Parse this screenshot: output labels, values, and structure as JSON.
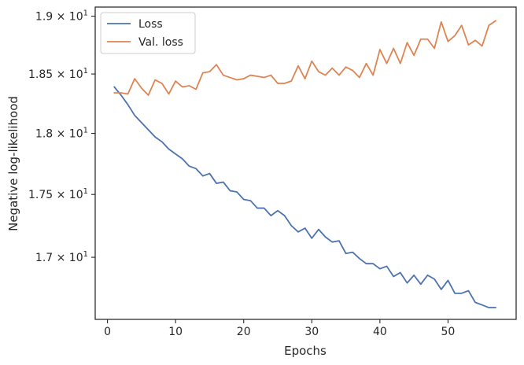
{
  "chart_data": {
    "type": "line",
    "xlabel": "Epochs",
    "ylabel": "Negative log-likelihood",
    "y_scale": "log",
    "xlim": [
      -1.8,
      60.0
    ],
    "ylim": [
      16.52,
      19.08
    ],
    "x_ticks": [
      0,
      10,
      20,
      30,
      40,
      50
    ],
    "x_tick_labels": [
      "0",
      "10",
      "20",
      "30",
      "40",
      "50"
    ],
    "y_ticks": [
      17.0,
      17.5,
      18.0,
      18.5,
      19.0
    ],
    "y_tick_labels": [
      {
        "mantissa": "1.7",
        "exp": "1"
      },
      {
        "mantissa": "1.75",
        "exp": "1"
      },
      {
        "mantissa": "1.8",
        "exp": "1"
      },
      {
        "mantissa": "1.85",
        "exp": "1"
      },
      {
        "mantissa": "1.9",
        "exp": "1"
      }
    ],
    "grid": false,
    "legend_position": "top-left",
    "x": [
      1,
      2,
      3,
      4,
      5,
      6,
      7,
      8,
      9,
      10,
      11,
      12,
      13,
      14,
      15,
      16,
      17,
      18,
      19,
      20,
      21,
      22,
      23,
      24,
      25,
      26,
      27,
      28,
      29,
      30,
      31,
      32,
      33,
      34,
      35,
      36,
      37,
      38,
      39,
      40,
      41,
      42,
      43,
      44,
      45,
      46,
      47,
      48,
      49,
      50,
      51,
      52,
      53,
      54,
      55,
      56,
      57
    ],
    "series": [
      {
        "name": "Loss",
        "color": "#4c72b0",
        "values": [
          18.39,
          18.32,
          18.24,
          18.15,
          18.09,
          18.03,
          17.97,
          17.93,
          17.87,
          17.83,
          17.79,
          17.73,
          17.71,
          17.65,
          17.67,
          17.59,
          17.6,
          17.53,
          17.52,
          17.46,
          17.45,
          17.39,
          17.39,
          17.33,
          17.37,
          17.33,
          17.25,
          17.2,
          17.23,
          17.15,
          17.22,
          17.16,
          17.12,
          17.13,
          17.03,
          17.04,
          16.99,
          16.95,
          16.95,
          16.91,
          16.93,
          16.85,
          16.88,
          16.8,
          16.86,
          16.79,
          16.86,
          16.83,
          16.75,
          16.82,
          16.72,
          16.72,
          16.74,
          16.65,
          16.63,
          16.61,
          16.61
        ]
      },
      {
        "name": "Val. loss",
        "color": "#dd8452",
        "values": [
          18.34,
          18.34,
          18.33,
          18.46,
          18.38,
          18.32,
          18.45,
          18.42,
          18.33,
          18.44,
          18.39,
          18.4,
          18.37,
          18.51,
          18.52,
          18.58,
          18.49,
          18.47,
          18.45,
          18.46,
          18.49,
          18.48,
          18.47,
          18.49,
          18.42,
          18.42,
          18.44,
          18.57,
          18.46,
          18.61,
          18.52,
          18.49,
          18.55,
          18.49,
          18.56,
          18.53,
          18.47,
          18.59,
          18.49,
          18.71,
          18.59,
          18.72,
          18.59,
          18.77,
          18.66,
          18.8,
          18.8,
          18.72,
          18.95,
          18.78,
          18.83,
          18.92,
          18.75,
          18.79,
          18.74,
          18.92,
          18.96
        ]
      }
    ]
  }
}
